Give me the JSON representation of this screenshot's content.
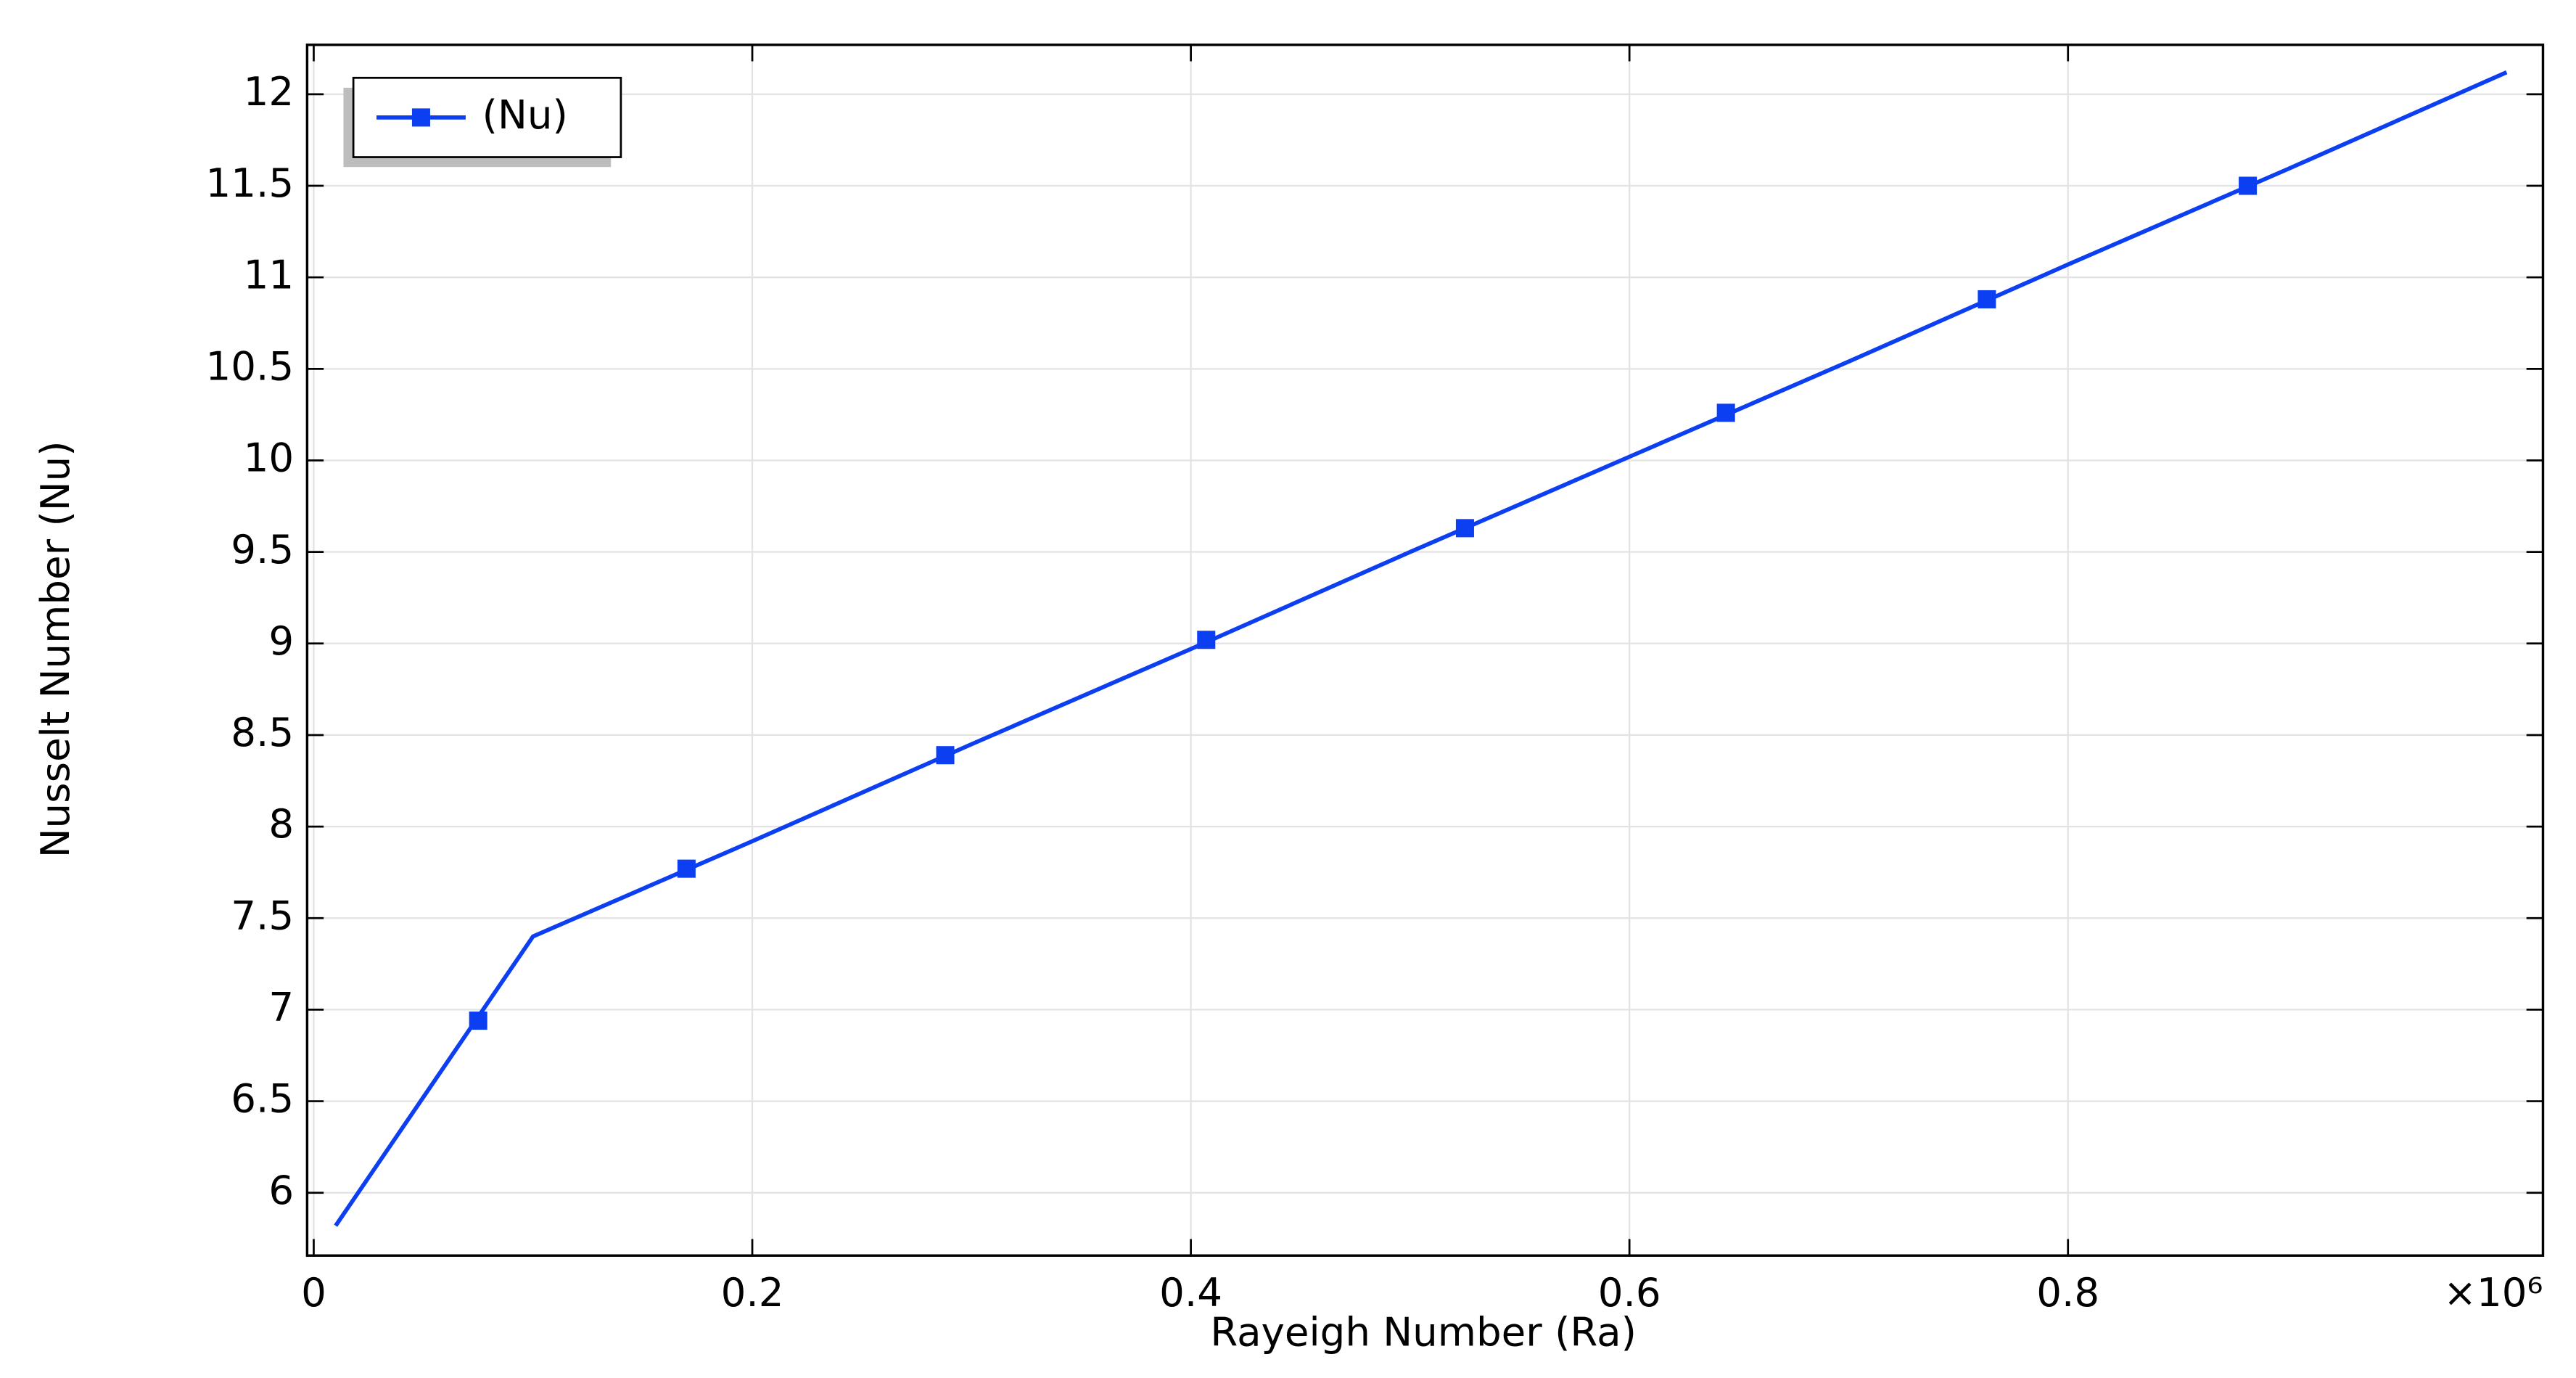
{
  "chart_data": {
    "type": "line",
    "x_label": "Rayeigh Number (Ra)",
    "y_label": "Nusselt Number (Nu)",
    "x_multiplier_label": "×10⁶",
    "xlim": [
      -0.003,
      1.0166
    ],
    "ylim": [
      5.657,
      12.27
    ],
    "xticks": [
      0,
      0.2,
      0.4,
      0.6,
      0.8
    ],
    "yticks": [
      6,
      6.5,
      7,
      7.5,
      8,
      8.5,
      9,
      9.5,
      10,
      10.5,
      11,
      11.5,
      12
    ],
    "grid": true,
    "legend": "upper left",
    "x": [
      0.01,
      0.1,
      0.2,
      0.3,
      0.4,
      0.5,
      0.6,
      0.7,
      0.8,
      0.9,
      1.0
    ],
    "series": [
      {
        "name": "(Nu)",
        "color": "#0d3ff2",
        "values": [
          5.82,
          7.4,
          7.92,
          8.45,
          8.97,
          9.5,
          10.02,
          10.54,
          11.07,
          11.59,
          12.12
        ],
        "marker_x": [
          0.075,
          0.17,
          0.288,
          0.407,
          0.525,
          0.644,
          0.763,
          0.882
        ],
        "marker_values": [
          6.94,
          7.77,
          8.39,
          9.02,
          9.63,
          10.26,
          10.88,
          11.5
        ]
      }
    ]
  }
}
